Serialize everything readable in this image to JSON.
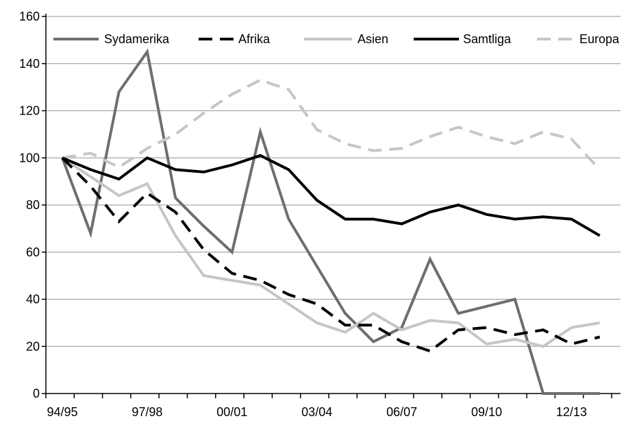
{
  "chart_data": {
    "type": "line",
    "title": "",
    "xlabel": "",
    "ylabel": "",
    "categories": [
      "94/95",
      "95/96",
      "96/97",
      "97/98",
      "98/99",
      "99/00",
      "00/01",
      "01/02",
      "02/03",
      "03/04",
      "04/05",
      "05/06",
      "06/07",
      "07/08",
      "08/09",
      "09/10",
      "10/11",
      "11/12",
      "12/13",
      "13/14"
    ],
    "x_tick_labels": [
      "94/95",
      "",
      "",
      "97/98",
      "",
      "",
      "00/01",
      "",
      "",
      "03/04",
      "",
      "",
      "06/07",
      "",
      "",
      "09/10",
      "",
      "",
      "12/13",
      ""
    ],
    "ylim": [
      0,
      160
    ],
    "yticks": [
      0,
      20,
      40,
      60,
      80,
      100,
      120,
      140,
      160
    ],
    "ytick_labels": [
      "0",
      "20",
      "40",
      "60",
      "80",
      "100",
      "120",
      "140",
      "160"
    ],
    "grid": true,
    "legend_position": "top",
    "series": [
      {
        "name": "Sydamerika",
        "color": "#6e6e6e",
        "dash": "solid",
        "values": [
          100,
          68,
          128,
          145,
          83,
          71,
          60,
          111,
          74,
          54,
          34,
          22,
          28,
          57,
          34,
          37,
          40,
          0,
          0,
          0
        ]
      },
      {
        "name": "Afrika",
        "color": "#000000",
        "dash": "dashed",
        "values": [
          100,
          88,
          73,
          85,
          77,
          61,
          51,
          48,
          42,
          38,
          29,
          29,
          22,
          18,
          27,
          28,
          25,
          27,
          21,
          24
        ]
      },
      {
        "name": "Asien",
        "color": "#c6c6c6",
        "dash": "solid",
        "values": [
          100,
          92,
          84,
          89,
          67,
          50,
          48,
          46,
          38,
          30,
          26,
          34,
          27,
          31,
          30,
          21,
          23,
          20,
          28,
          30
        ]
      },
      {
        "name": "Samtliga",
        "color": "#000000",
        "dash": "solid",
        "values": [
          100,
          95,
          91,
          100,
          95,
          94,
          97,
          101,
          95,
          82,
          74,
          74,
          72,
          77,
          80,
          76,
          74,
          75,
          74,
          67
        ]
      },
      {
        "name": "Europa",
        "color": "#c6c6c6",
        "dash": "dashed",
        "values": [
          100,
          102,
          96,
          104,
          110,
          119,
          127,
          133,
          129,
          112,
          106,
          103,
          104,
          109,
          113,
          109,
          106,
          111,
          108,
          95
        ]
      }
    ]
  }
}
